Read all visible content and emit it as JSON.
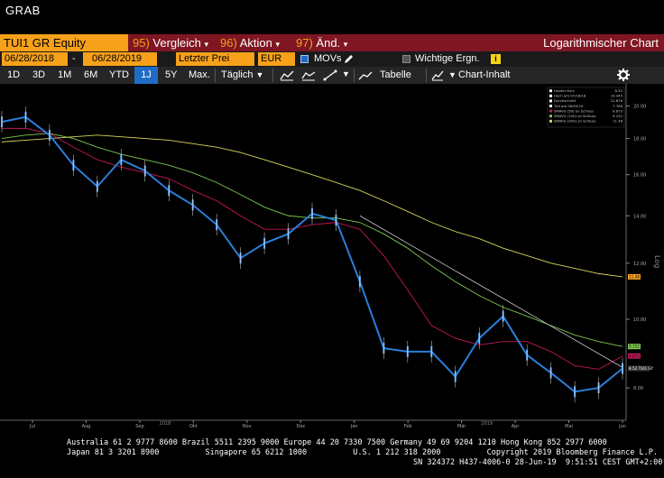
{
  "window": {
    "title": "GRAB"
  },
  "command_bar": {
    "ticker": "TUI1 GR Equity",
    "items": [
      {
        "num": "95)",
        "label": "Vergleich",
        "arrow": "▾"
      },
      {
        "num": "96)",
        "label": "Aktion",
        "arrow": "▾"
      },
      {
        "num": "97)",
        "label": "Änd.",
        "arrow": "▾"
      }
    ],
    "title": "Logarithmischer Chart"
  },
  "date_bar": {
    "start_date": "06/28/2018",
    "dash": "-",
    "end_date": "06/28/2019",
    "price_type": "Letzter Prei",
    "currency": "EUR",
    "movs_label": "MOVs",
    "events_label": "Wichtige Ergn."
  },
  "range_bar": {
    "ranges": [
      "1D",
      "3D",
      "1M",
      "6M",
      "YTD",
      "1J",
      "5Y",
      "Max."
    ],
    "active_range": "1J",
    "frequency": "Täglich",
    "table_label": "Tabelle",
    "chart_content_label": "Chart-Inhalt"
  },
  "legend": {
    "rows": [
      {
        "label": "Letzter Kurs",
        "value": "8.52"
      },
      {
        "label": "Hoch am 07/18/18",
        "value": "19.345"
      },
      {
        "label": "Durchschnitt",
        "value": "12.878"
      },
      {
        "label": "Tief am 06/03/19",
        "value": "7.768"
      },
      {
        "label": "SMAVG (50)  on Schluss",
        "value": "8.873"
      },
      {
        "label": "SMAVG (100)  on Schluss",
        "value": "9.152"
      },
      {
        "label": "SMAVG (200)  on Schluss",
        "value": "11.48"
      }
    ]
  },
  "colors": {
    "price": "#2a7fd9",
    "sma50": "#c2185b",
    "sma100": "#7ec850",
    "sma200": "#d6d65a",
    "trend": "#c8c8c8",
    "orange": "#f7a11a",
    "command_red": "#7f1622"
  },
  "chart_data": {
    "type": "line",
    "scale": "log",
    "ylabel": "Log",
    "y_ticks": [
      8.0,
      10.0,
      12.0,
      14.0,
      16.0,
      18.0,
      20.0
    ],
    "y_tick_labels": [
      "8.00",
      "10.00",
      "12.00",
      "14.00",
      "16.00",
      "18.00",
      "20.00"
    ],
    "x_ticks": [
      "Jul",
      "Aug",
      "Sep",
      "Okt",
      "Nov",
      "Dez",
      "Jan",
      "Feb",
      "Mär",
      "Apr",
      "Mai",
      "Jun"
    ],
    "x_year_labels": [
      {
        "after": "Sep",
        "label": "2018"
      },
      {
        "after": "Mär",
        "label": "2019"
      }
    ],
    "ylim": [
      7.2,
      21.0
    ],
    "x": [
      "07/01/18",
      "07/15/18",
      "07/29/18",
      "08/12/18",
      "08/26/18",
      "09/09/18",
      "09/23/18",
      "10/07/18",
      "10/21/18",
      "11/04/18",
      "11/18/18",
      "12/02/18",
      "12/16/18",
      "12/30/18",
      "01/13/19",
      "01/27/19",
      "02/10/19",
      "02/24/19",
      "03/10/19",
      "03/24/19",
      "04/07/19",
      "04/21/19",
      "05/05/19",
      "05/19/19",
      "06/02/19",
      "06/16/19",
      "06/28/19"
    ],
    "series": [
      {
        "name": "",
        "values": [
          19.0,
          19.3,
          18.2,
          16.5,
          15.4,
          16.8,
          16.2,
          15.2,
          14.5,
          13.6,
          12.2,
          12.8,
          13.2,
          14.1,
          13.8,
          11.3,
          9.1,
          9.0,
          9.0,
          8.3,
          9.4,
          10.1,
          8.9,
          8.4,
          7.9,
          8.0,
          8.52
        ]
      },
      {
        "name": "SMAVG (50)",
        "values": [
          18.6,
          18.6,
          18.3,
          17.5,
          16.8,
          16.4,
          16.1,
          15.8,
          15.2,
          14.7,
          14.0,
          13.4,
          13.4,
          13.6,
          13.7,
          13.4,
          12.3,
          11.0,
          9.8,
          9.4,
          9.2,
          9.3,
          9.3,
          9.0,
          8.6,
          8.5,
          8.873
        ]
      },
      {
        "name": "SMAVG (100)",
        "values": [
          18.0,
          18.2,
          18.3,
          18.0,
          17.5,
          17.1,
          16.8,
          16.5,
          16.1,
          15.6,
          15.0,
          14.4,
          14.0,
          13.9,
          13.9,
          13.7,
          13.2,
          12.6,
          11.9,
          11.3,
          10.8,
          10.4,
          10.1,
          9.8,
          9.5,
          9.3,
          9.152
        ]
      },
      {
        "name": "SMAVG (200)",
        "values": [
          17.8,
          17.9,
          18.0,
          18.1,
          18.2,
          18.1,
          18.0,
          17.9,
          17.7,
          17.5,
          17.2,
          16.8,
          16.4,
          16.0,
          15.6,
          15.2,
          14.7,
          14.2,
          13.7,
          13.3,
          13.0,
          12.6,
          12.3,
          12.0,
          11.8,
          11.6,
          11.48
        ]
      }
    ],
    "price_labels": [
      {
        "label": "11.48",
        "value": 11.48,
        "color": "#f7a11a"
      },
      {
        "label": "9.152",
        "value": 9.152,
        "color": "#7ec850"
      },
      {
        "label": "8.873",
        "value": 8.873,
        "color": "#c2185b"
      },
      {
        "label": "8.52 TUI1 GY",
        "value": 8.52,
        "color": "#ffffff"
      }
    ],
    "legend_placement": "top-right",
    "grid": false
  },
  "footer": {
    "line1": "Australia 61 2 9777 8600 Brazil 5511 2395 9000 Europe 44 20 7330 7500 Germany 49 69 9204 1210 Hong Kong 852 2977 6000",
    "line2": "Japan 81 3 3201 8900          Singapore 65 6212 1000          U.S. 1 212 318 2000          Copyright 2019 Bloomberg Finance L.P.",
    "line3": "SN 324372 H437-4006-0 28-Jun-19  9:51:51 CEST GMT+2:00"
  }
}
